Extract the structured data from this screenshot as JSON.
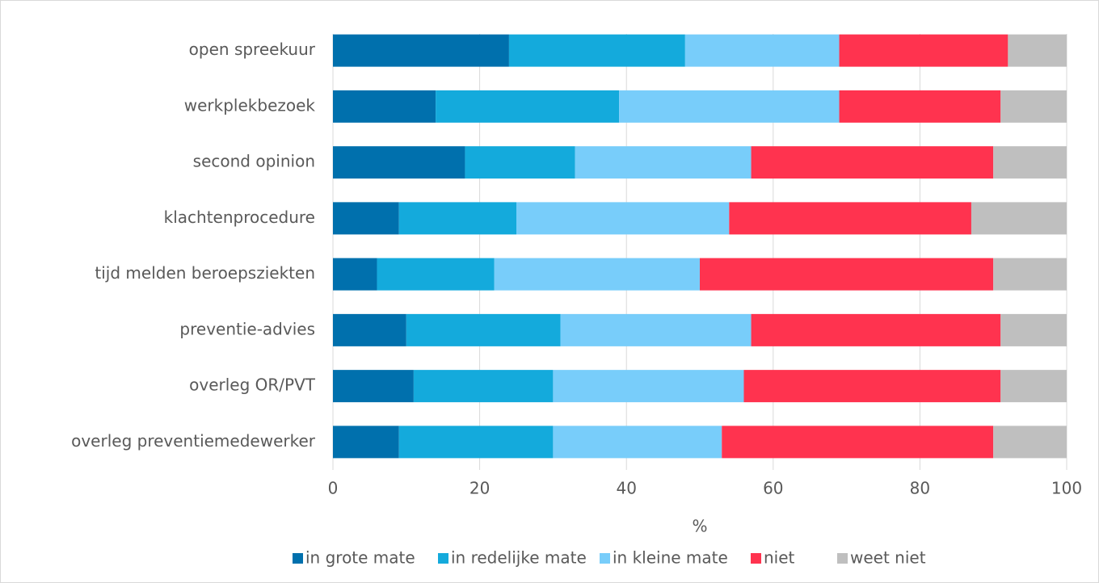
{
  "chart_data": {
    "type": "stacked-bar-horizontal",
    "categories": [
      "open spreekuur",
      "werkplekbezoek",
      "second opinion",
      "klachtenprocedure",
      "tijd melden beroepsziekten",
      "preventie-advies",
      "overleg OR/PVT",
      "overleg preventiemedewerker"
    ],
    "series": [
      {
        "name": "in grote mate",
        "color": "#0070ad",
        "values": [
          24,
          14,
          18,
          9,
          6,
          10,
          11,
          9
        ]
      },
      {
        "name": "in redelijke mate",
        "color": "#14aadc",
        "values": [
          24,
          25,
          15,
          16,
          16,
          21,
          19,
          21
        ]
      },
      {
        "name": "in kleine mate",
        "color": "#78cdfa",
        "values": [
          21,
          30,
          24,
          29,
          28,
          26,
          26,
          23
        ]
      },
      {
        "name": "niet",
        "color": "#ff334f",
        "values": [
          23,
          22,
          33,
          33,
          40,
          34,
          35,
          37
        ]
      },
      {
        "name": "weet niet",
        "color": "#bfbfbf",
        "values": [
          8,
          9,
          10,
          13,
          10,
          9,
          9,
          10
        ]
      }
    ],
    "x_label": "%",
    "xlim": [
      0,
      100
    ],
    "xticks": [
      0,
      20,
      40,
      60,
      80,
      100
    ],
    "grid": true,
    "legend": "bottom"
  }
}
